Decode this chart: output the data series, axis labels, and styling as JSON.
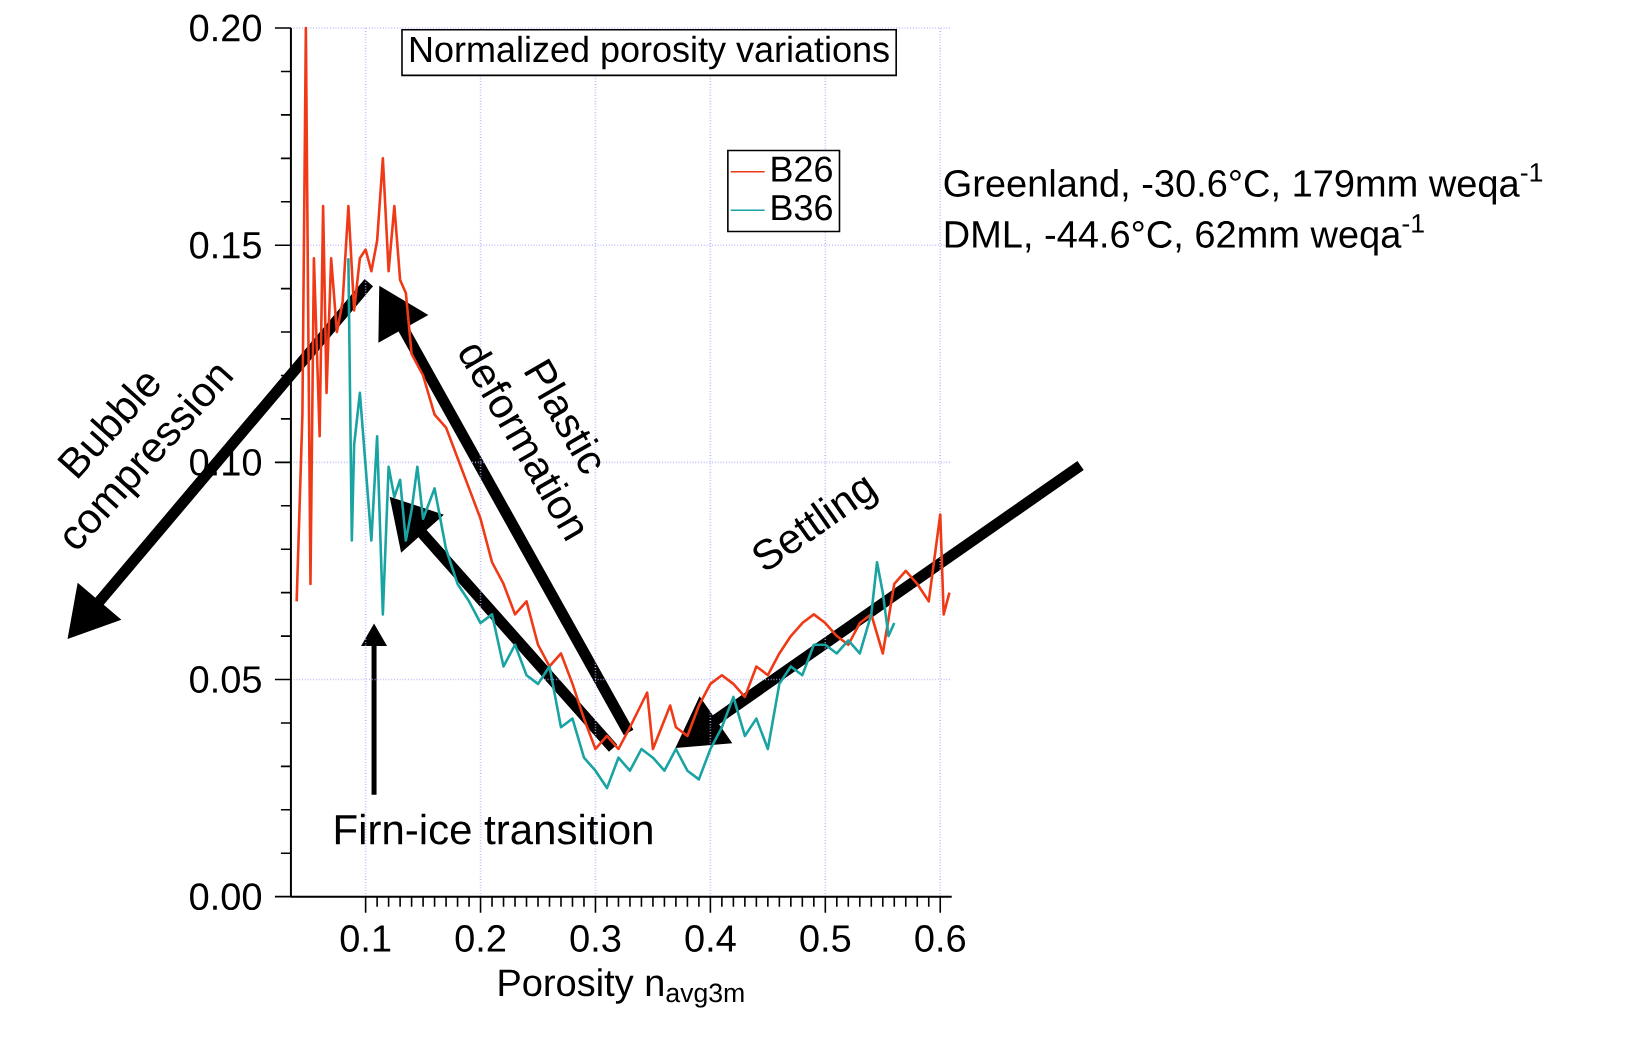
{
  "chart_data": {
    "type": "line",
    "title": "Normalized porosity variations",
    "xlabel": "Porosity n$_{avg3m}$",
    "xlim": [
      0.035,
      0.61
    ],
    "ylim": [
      0,
      0.2
    ],
    "xticks": [
      0.1,
      0.2,
      0.3,
      0.4,
      0.5,
      0.6
    ],
    "yticks": [
      {
        "value": 0,
        "label": "0.00"
      },
      {
        "value": 0.05,
        "label": "0.05"
      },
      {
        "value": 0.1,
        "label": "0.10"
      },
      {
        "value": 0.15,
        "label": "0.15"
      },
      {
        "value": 0.2,
        "label": "0.20"
      }
    ],
    "grid": true,
    "legend": "top right",
    "series": [
      {
        "name": "B26",
        "color": "#f03a17",
        "x": [
          0.04,
          0.045,
          0.048,
          0.05,
          0.052,
          0.055,
          0.06,
          0.063,
          0.066,
          0.07,
          0.075,
          0.08,
          0.085,
          0.09,
          0.095,
          0.1,
          0.105,
          0.11,
          0.115,
          0.12,
          0.125,
          0.13,
          0.135,
          0.14,
          0.15,
          0.16,
          0.17,
          0.18,
          0.19,
          0.2,
          0.21,
          0.22,
          0.23,
          0.24,
          0.25,
          0.26,
          0.27,
          0.28,
          0.29,
          0.3,
          0.31,
          0.32,
          0.33,
          0.345,
          0.35,
          0.365,
          0.37,
          0.38,
          0.39,
          0.4,
          0.41,
          0.42,
          0.43,
          0.44,
          0.45,
          0.46,
          0.47,
          0.48,
          0.49,
          0.5,
          0.51,
          0.52,
          0.53,
          0.54,
          0.55,
          0.56,
          0.57,
          0.58,
          0.59,
          0.6,
          0.603,
          0.608
        ],
        "values": [
          0.068,
          0.111,
          0.2,
          0.135,
          0.072,
          0.147,
          0.106,
          0.159,
          0.116,
          0.147,
          0.13,
          0.137,
          0.159,
          0.135,
          0.147,
          0.149,
          0.144,
          0.151,
          0.17,
          0.144,
          0.159,
          0.142,
          0.139,
          0.125,
          0.12,
          0.111,
          0.108,
          0.101,
          0.094,
          0.087,
          0.077,
          0.072,
          0.065,
          0.068,
          0.058,
          0.053,
          0.056,
          0.049,
          0.041,
          0.034,
          0.037,
          0.034,
          0.039,
          0.047,
          0.034,
          0.044,
          0.039,
          0.037,
          0.044,
          0.049,
          0.051,
          0.049,
          0.046,
          0.053,
          0.051,
          0.056,
          0.06,
          0.063,
          0.065,
          0.063,
          0.06,
          0.058,
          0.063,
          0.065,
          0.056,
          0.072,
          0.075,
          0.072,
          0.068,
          0.088,
          0.065,
          0.07
        ]
      },
      {
        "name": "B36",
        "color": "#1aa3a3",
        "x": [
          0.085,
          0.088,
          0.09,
          0.095,
          0.1,
          0.105,
          0.11,
          0.115,
          0.12,
          0.125,
          0.13,
          0.135,
          0.14,
          0.145,
          0.15,
          0.16,
          0.17,
          0.18,
          0.19,
          0.2,
          0.21,
          0.22,
          0.23,
          0.24,
          0.25,
          0.26,
          0.27,
          0.28,
          0.29,
          0.3,
          0.31,
          0.32,
          0.33,
          0.34,
          0.35,
          0.36,
          0.37,
          0.38,
          0.39,
          0.4,
          0.41,
          0.42,
          0.43,
          0.44,
          0.45,
          0.46,
          0.47,
          0.48,
          0.49,
          0.5,
          0.51,
          0.52,
          0.53,
          0.54,
          0.545,
          0.55,
          0.555,
          0.56
        ],
        "values": [
          0.147,
          0.082,
          0.104,
          0.116,
          0.099,
          0.082,
          0.106,
          0.065,
          0.099,
          0.092,
          0.096,
          0.082,
          0.089,
          0.099,
          0.087,
          0.094,
          0.08,
          0.072,
          0.068,
          0.063,
          0.065,
          0.053,
          0.058,
          0.051,
          0.049,
          0.053,
          0.039,
          0.041,
          0.032,
          0.029,
          0.025,
          0.032,
          0.029,
          0.034,
          0.032,
          0.029,
          0.034,
          0.029,
          0.027,
          0.034,
          0.039,
          0.046,
          0.037,
          0.041,
          0.034,
          0.049,
          0.053,
          0.051,
          0.058,
          0.058,
          0.056,
          0.059,
          0.056,
          0.065,
          0.077,
          0.07,
          0.06,
          0.063
        ]
      }
    ],
    "annotations": [
      "Greenland, -30.6°C, 179mm weqa$^{-1}$",
      "DML, -44.6°C, 62mm weqa$^{-1}$",
      "Bubble compression",
      "Plastic deformation",
      "Settling",
      "Firn-ice transition"
    ]
  }
}
